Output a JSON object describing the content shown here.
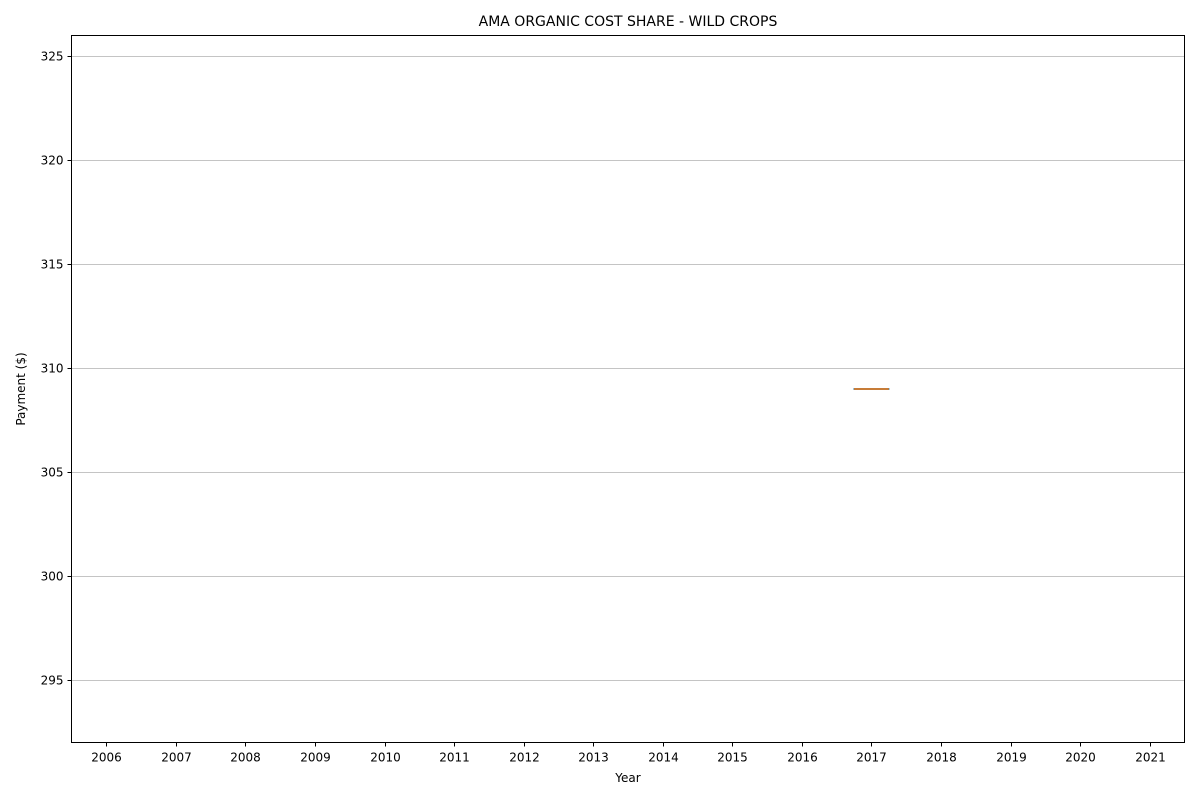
{
  "chart_data": {
    "type": "box",
    "title": "AMA ORGANIC COST SHARE - WILD CROPS",
    "xlabel": "Year",
    "ylabel": "Payment ($)",
    "categories": [
      "2006",
      "2007",
      "2008",
      "2009",
      "2010",
      "2011",
      "2012",
      "2013",
      "2014",
      "2015",
      "2016",
      "2017",
      "2018",
      "2019",
      "2020",
      "2021"
    ],
    "yticks": [
      295,
      300,
      305,
      310,
      315,
      320,
      325
    ],
    "ylim": [
      292,
      326
    ],
    "grid": "y",
    "boxes": [
      {
        "category": "2017",
        "min": 309,
        "q1": 309,
        "median": 309,
        "q3": 309,
        "max": 309
      }
    ],
    "colors": {
      "box": "#1f77b4",
      "median": "#ff7f0e",
      "grid": "#b0b0b0"
    }
  }
}
